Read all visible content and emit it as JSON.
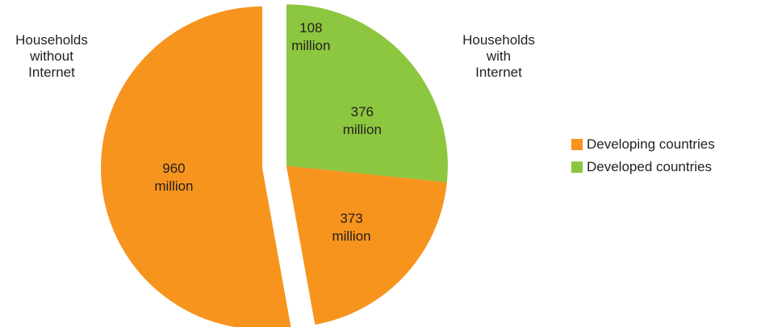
{
  "chart_data": {
    "type": "pie",
    "title": "",
    "group_labels": {
      "without": [
        "Households",
        "without",
        "Internet"
      ],
      "with": [
        "Households",
        "with",
        "Internet"
      ]
    },
    "series": [
      {
        "name": "Developing countries",
        "color": "#f7941d"
      },
      {
        "name": "Developed countries",
        "color": "#8dc63f"
      }
    ],
    "slices": [
      {
        "group": "Households with Internet",
        "series": "Developed countries",
        "value": 108,
        "label": [
          "108",
          "million"
        ]
      },
      {
        "group": "Households with Internet",
        "series": "Developed countries",
        "value": 376,
        "label": [
          "376",
          "million"
        ]
      },
      {
        "group": "Households with Internet",
        "series": "Developing countries",
        "value": 373,
        "label": [
          "373",
          "million"
        ]
      },
      {
        "group": "Households without Internet",
        "series": "Developing countries",
        "value": 960,
        "label": [
          "960",
          "million"
        ]
      }
    ],
    "unit": "million households",
    "legend_position": "right",
    "exploded_group": "Households with Internet"
  }
}
